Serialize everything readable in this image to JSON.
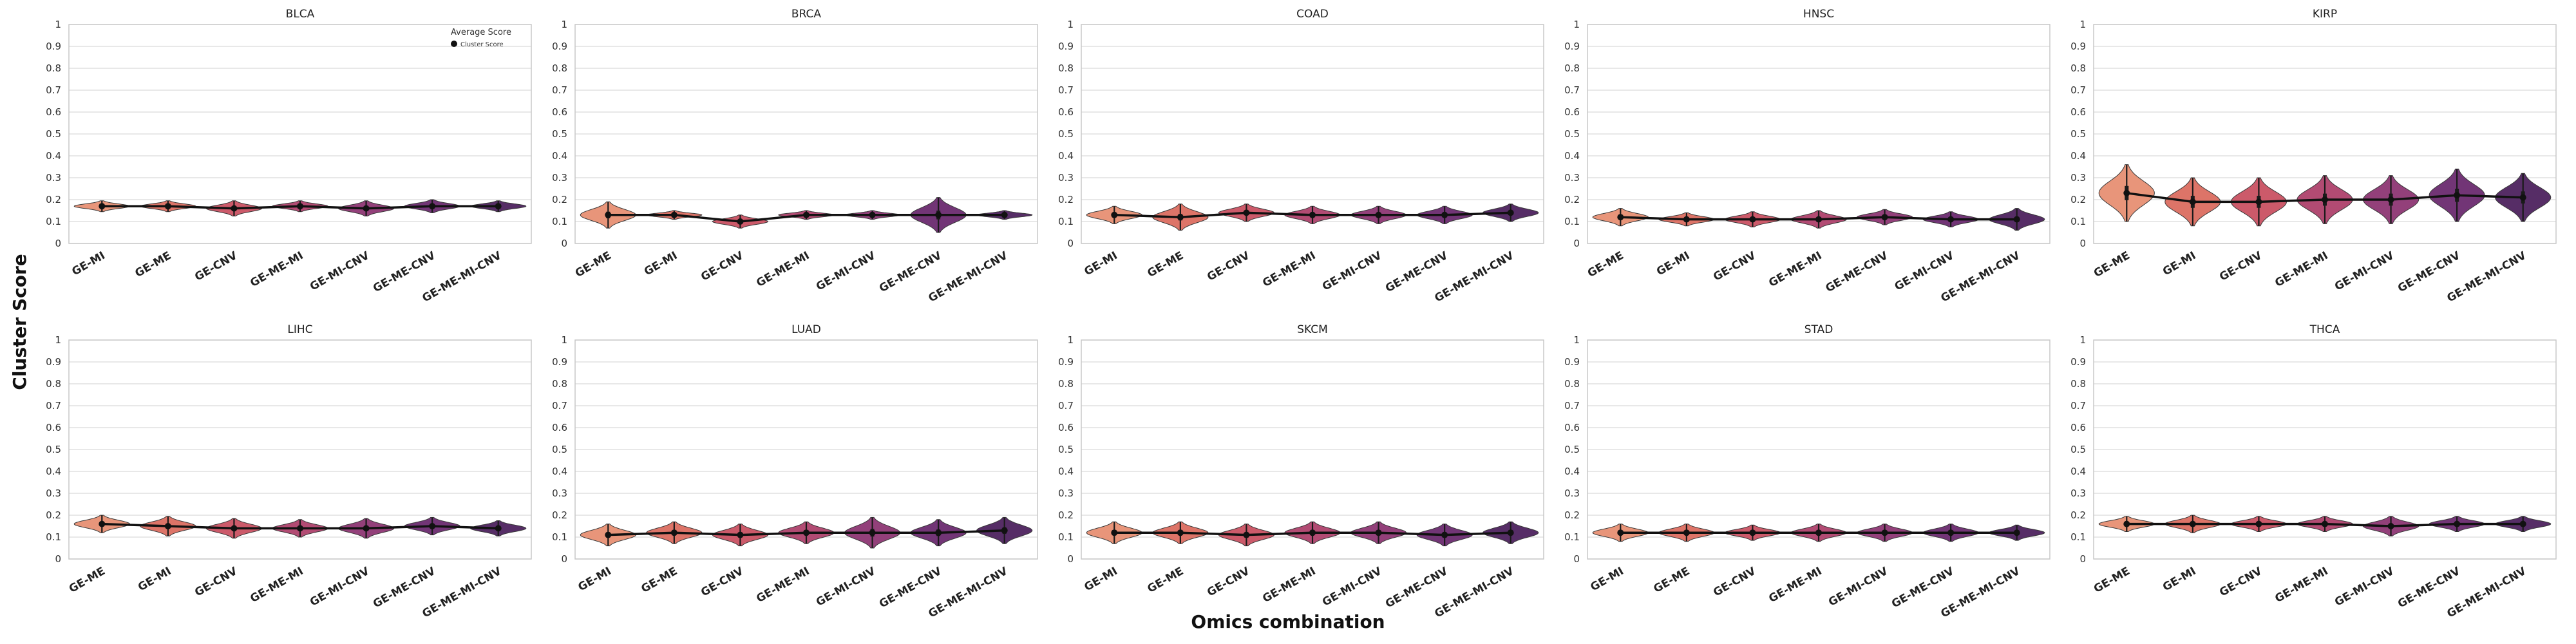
{
  "figure": {
    "ylabel": "Cluster Score",
    "xlabel": "Omics combination",
    "legend": {
      "title": "Average Score",
      "item": "Cluster Score",
      "position": "top-right of BLCA panel"
    }
  },
  "chart_data": [
    {
      "type": "violin",
      "title": "BLCA",
      "categories": [
        "GE-MI",
        "GE-ME",
        "GE-CNV",
        "GE-ME-MI",
        "GE-MI-CNV",
        "GE-ME-CNV",
        "GE-ME-MI-CNV"
      ],
      "values": [
        0.17,
        0.17,
        0.16,
        0.17,
        0.16,
        0.17,
        0.17
      ],
      "spread": [
        0.025,
        0.025,
        0.035,
        0.025,
        0.035,
        0.03,
        0.025
      ],
      "ylim": [
        0,
        1
      ],
      "yticks": [
        "0",
        "0.1",
        "0.2",
        "0.3",
        "0.4",
        "0.5",
        "0.6",
        "0.7",
        "0.8",
        "0.9",
        "1"
      ],
      "grid": true
    },
    {
      "type": "violin",
      "title": "BRCA",
      "categories": [
        "GE-ME",
        "GE-MI",
        "GE-CNV",
        "GE-ME-MI",
        "GE-MI-CNV",
        "GE-ME-CNV",
        "GE-ME-MI-CNV"
      ],
      "values": [
        0.13,
        0.13,
        0.1,
        0.13,
        0.13,
        0.13,
        0.13
      ],
      "spread": [
        0.06,
        0.02,
        0.03,
        0.02,
        0.02,
        0.08,
        0.02
      ],
      "ylim": [
        0,
        1
      ],
      "yticks": [
        "0",
        "0.1",
        "0.2",
        "0.3",
        "0.4",
        "0.5",
        "0.6",
        "0.7",
        "0.8",
        "0.9",
        "1"
      ],
      "grid": true
    },
    {
      "type": "violin",
      "title": "COAD",
      "categories": [
        "GE-MI",
        "GE-ME",
        "GE-CNV",
        "GE-ME-MI",
        "GE-MI-CNV",
        "GE-ME-CNV",
        "GE-ME-MI-CNV"
      ],
      "values": [
        0.13,
        0.12,
        0.14,
        0.13,
        0.13,
        0.13,
        0.14
      ],
      "spread": [
        0.04,
        0.06,
        0.04,
        0.04,
        0.04,
        0.04,
        0.04
      ],
      "ylim": [
        0,
        1
      ],
      "yticks": [
        "0",
        "0.1",
        "0.2",
        "0.3",
        "0.4",
        "0.5",
        "0.6",
        "0.7",
        "0.8",
        "0.9",
        "1"
      ],
      "grid": true
    },
    {
      "type": "violin",
      "title": "HNSC",
      "categories": [
        "GE-ME",
        "GE-MI",
        "GE-CNV",
        "GE-ME-MI",
        "GE-ME-CNV",
        "GE-MI-CNV",
        "GE-ME-MI-CNV"
      ],
      "values": [
        0.12,
        0.11,
        0.11,
        0.11,
        0.12,
        0.11,
        0.11
      ],
      "spread": [
        0.04,
        0.03,
        0.035,
        0.04,
        0.035,
        0.035,
        0.05
      ],
      "ylim": [
        0,
        1
      ],
      "yticks": [
        "0",
        "0.1",
        "0.2",
        "0.3",
        "0.4",
        "0.5",
        "0.6",
        "0.7",
        "0.8",
        "0.9",
        "1"
      ],
      "grid": true
    },
    {
      "type": "violin",
      "title": "KIRP",
      "categories": [
        "GE-ME",
        "GE-MI",
        "GE-CNV",
        "GE-ME-MI",
        "GE-MI-CNV",
        "GE-ME-CNV",
        "GE-ME-MI-CNV"
      ],
      "values": [
        0.23,
        0.19,
        0.19,
        0.2,
        0.2,
        0.22,
        0.21
      ],
      "spread": [
        0.13,
        0.11,
        0.11,
        0.11,
        0.11,
        0.12,
        0.11
      ],
      "ylim": [
        0,
        1
      ],
      "yticks": [
        "0",
        "0.1",
        "0.2",
        "0.3",
        "0.4",
        "0.5",
        "0.6",
        "0.7",
        "0.8",
        "0.9",
        "1"
      ],
      "grid": true
    },
    {
      "type": "violin",
      "title": "LIHC",
      "categories": [
        "GE-ME",
        "GE-MI",
        "GE-CNV",
        "GE-ME-MI",
        "GE-MI-CNV",
        "GE-ME-CNV",
        "GE-ME-MI-CNV"
      ],
      "values": [
        0.16,
        0.15,
        0.14,
        0.14,
        0.14,
        0.15,
        0.14
      ],
      "spread": [
        0.04,
        0.045,
        0.045,
        0.04,
        0.045,
        0.04,
        0.035
      ],
      "ylim": [
        0,
        1
      ],
      "yticks": [
        "0",
        "0.1",
        "0.2",
        "0.3",
        "0.4",
        "0.5",
        "0.6",
        "0.7",
        "0.8",
        "0.9",
        "1"
      ],
      "grid": true
    },
    {
      "type": "violin",
      "title": "LUAD",
      "categories": [
        "GE-MI",
        "GE-ME",
        "GE-CNV",
        "GE-ME-MI",
        "GE-MI-CNV",
        "GE-ME-CNV",
        "GE-ME-MI-CNV"
      ],
      "values": [
        0.11,
        0.12,
        0.11,
        0.12,
        0.12,
        0.12,
        0.13
      ],
      "spread": [
        0.05,
        0.05,
        0.05,
        0.05,
        0.07,
        0.06,
        0.06
      ],
      "ylim": [
        0,
        1
      ],
      "yticks": [
        "0",
        "0.1",
        "0.2",
        "0.3",
        "0.4",
        "0.5",
        "0.6",
        "0.7",
        "0.8",
        "0.9",
        "1"
      ],
      "grid": true
    },
    {
      "type": "violin",
      "title": "SKCM",
      "categories": [
        "GE-MI",
        "GE-ME",
        "GE-CNV",
        "GE-ME-MI",
        "GE-MI-CNV",
        "GE-ME-CNV",
        "GE-ME-MI-CNV"
      ],
      "values": [
        0.12,
        0.12,
        0.11,
        0.12,
        0.12,
        0.11,
        0.12
      ],
      "spread": [
        0.05,
        0.05,
        0.05,
        0.05,
        0.05,
        0.05,
        0.05
      ],
      "ylim": [
        0,
        1
      ],
      "yticks": [
        "0",
        "0.1",
        "0.2",
        "0.3",
        "0.4",
        "0.5",
        "0.6",
        "0.7",
        "0.8",
        "0.9",
        "1"
      ],
      "grid": true
    },
    {
      "type": "violin",
      "title": "STAD",
      "categories": [
        "GE-MI",
        "GE-ME",
        "GE-CNV",
        "GE-ME-MI",
        "GE-MI-CNV",
        "GE-ME-CNV",
        "GE-ME-MI-CNV"
      ],
      "values": [
        0.12,
        0.12,
        0.12,
        0.12,
        0.12,
        0.12,
        0.12
      ],
      "spread": [
        0.04,
        0.04,
        0.035,
        0.04,
        0.04,
        0.04,
        0.035
      ],
      "ylim": [
        0,
        1
      ],
      "yticks": [
        "0",
        "0.1",
        "0.2",
        "0.3",
        "0.4",
        "0.5",
        "0.6",
        "0.7",
        "0.8",
        "0.9",
        "1"
      ],
      "grid": true
    },
    {
      "type": "violin",
      "title": "THCA",
      "categories": [
        "GE-ME",
        "GE-MI",
        "GE-CNV",
        "GE-ME-MI",
        "GE-MI-CNV",
        "GE-ME-CNV",
        "GE-ME-MI-CNV"
      ],
      "values": [
        0.16,
        0.16,
        0.16,
        0.16,
        0.15,
        0.16,
        0.16
      ],
      "spread": [
        0.035,
        0.04,
        0.035,
        0.035,
        0.045,
        0.035,
        0.035
      ],
      "ylim": [
        0,
        1
      ],
      "yticks": [
        "0",
        "0.1",
        "0.2",
        "0.3",
        "0.4",
        "0.5",
        "0.6",
        "0.7",
        "0.8",
        "0.9",
        "1"
      ],
      "grid": true
    }
  ],
  "colors": [
    "#e8957a",
    "#dd7468",
    "#cc5a6a",
    "#b24b73",
    "#93407a",
    "#723576",
    "#562d66"
  ],
  "marker_color": "#111111"
}
